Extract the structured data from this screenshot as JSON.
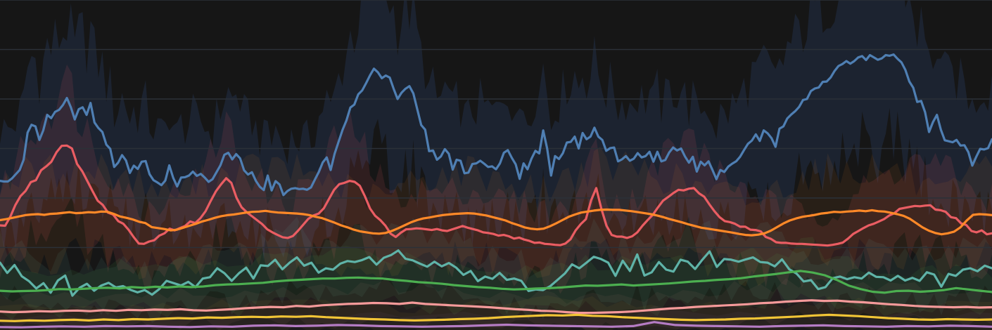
{
  "colors": {
    "background": "#161616",
    "grid": "#2b3138"
  },
  "chart_data": {
    "type": "line",
    "title": "",
    "xlabel": "",
    "ylabel": "",
    "ylim": [
      0,
      100
    ],
    "grid": true,
    "gridlines": [
      25,
      40,
      55,
      70,
      85,
      100
    ],
    "legend": "none",
    "series": [
      {
        "color": "#4f7fb3",
        "band_color": "#1c2330",
        "band_opacity": 1,
        "values": [
          45.2,
          45.0,
          45.0,
          45.9,
          47.2,
          48.5,
          51.6,
          59.8,
          62.2,
          61.7,
          57.6,
          60.5,
          65.2,
          64.2,
          66.1,
          66.7,
          68.2,
          70.3,
          67.5,
          63.8,
          66.9,
          67.5,
          65.2,
          68.8,
          62.9,
          61.2,
          60.0,
          56.2,
          54.9,
          49.4,
          50.7,
          53.0,
          51.4,
          47.6,
          49.8,
          48.8,
          51.0,
          51.2,
          47.2,
          45.4,
          44.7,
          43.9,
          45.3,
          49.9,
          46.1,
          43.5,
          46.2,
          46.3,
          46.8,
          48.0,
          46.7,
          47.3,
          46.2,
          44.9,
          45.7,
          47.8,
          49.9,
          53.1,
          53.7,
          51.7,
          53.3,
          52.0,
          48.4,
          47.1,
          47.8,
          45.2,
          43.4,
          42.4,
          46.8,
          42.3,
          45.1,
          44.1,
          40.9,
          42.1,
          42.8,
          43.0,
          42.7,
          42.8,
          42.5,
          43.2,
          45.6,
          47.9,
          50.8,
          52.3,
          48.5,
          53.4,
          57.0,
          60.6,
          63.5,
          67.4,
          68.3,
          71.4,
          72.6,
          74.8,
          77.2,
          79.2,
          78.1,
          76.3,
          77.1,
          76.5,
          73.1,
          70.0,
          71.9,
          73.1,
          73.9,
          71.7,
          66.9,
          62.1,
          60.7,
          54.2,
          54.4,
          51.6,
          52.6,
          54.8,
          53.4,
          48.6,
          51.6,
          51.3,
          47.5,
          47.7,
          50.3,
          50.5,
          51.3,
          50.4,
          49.4,
          49.6,
          48.7,
          50.5,
          53.7,
          54.5,
          52.2,
          50.2,
          45.8,
          50.5,
          48.7,
          51.9,
          54.3,
          53.5,
          60.5,
          55.0,
          46.8,
          52.7,
          51.8,
          53.6,
          56.8,
          57.0,
          58.6,
          55.0,
          59.7,
          57.8,
          58.6,
          61.3,
          58.6,
          57.6,
          54.3,
          55.1,
          55.3,
          51.1,
          51.7,
          52.7,
          51.3,
          51.9,
          53.6,
          52.3,
          52.7,
          54.0,
          51.0,
          54.0,
          51.1,
          51.5,
          53.8,
          55.3,
          54.4,
          55.0,
          52.6,
          50.7,
          52.5,
          48.0,
          51.0,
          49.9,
          51.1,
          48.5,
          45.7,
          48.5,
          47.9,
          49.5,
          50.4,
          51.1,
          52.5,
          54.5,
          56.4,
          57.4,
          59.3,
          57.3,
          60.5,
          59.6,
          58.1,
          55.5,
          61.0,
          61.7,
          64.1,
          65.3,
          66.3,
          67.6,
          69.7,
          70.0,
          72.4,
          73.2,
          73.5,
          75.2,
          75.3,
          76.5,
          78.5,
          80.0,
          80.6,
          81.5,
          80.7,
          81.5,
          82.6,
          83.0,
          81.8,
          83.3,
          82.6,
          81.9,
          82.3,
          83.3,
          83.1,
          83.5,
          82.2,
          81.1,
          78.8,
          75.3,
          73.4,
          69.1,
          69.4,
          66.0,
          60.0,
          63.0,
          65.2,
          60.7,
          57.5,
          57.2,
          56.9,
          57.6,
          55.9,
          56.0,
          53.9,
          49.8,
          52.5,
          54.9,
          54.7,
          55.1,
          57.8
        ]
      },
      {
        "color": "#ea5d63",
        "band_color": "#ea5d63",
        "band_opacity": 0.12,
        "values": [
          31.7,
          31.6,
          34.3,
          37.9,
          40.6,
          42.2,
          44.8,
          45.4,
          48.4,
          49.6,
          51.0,
          53.9,
          55.8,
          55.9,
          55.0,
          50.3,
          48.1,
          45.1,
          42.1,
          39.2,
          37.9,
          35.6,
          35.0,
          33.0,
          32.2,
          30.4,
          28.2,
          26.2,
          26.1,
          26.8,
          27.2,
          28.6,
          29.3,
          30.7,
          30.2,
          30.9,
          31.5,
          32.9,
          32.4,
          33.9,
          36.0,
          39.1,
          42.0,
          44.1,
          46.0,
          44.6,
          40.1,
          37.2,
          35.7,
          34.5,
          33.3,
          32.1,
          30.5,
          29.6,
          28.8,
          28.1,
          27.9,
          28.5,
          30.1,
          31.9,
          33.7,
          34.7,
          35.3,
          36.9,
          39.7,
          42.5,
          44.2,
          44.6,
          45.2,
          44.9,
          43.7,
          40.5,
          36.8,
          34.6,
          33.3,
          31.6,
          29.2,
          28.2,
          29.5,
          30.5,
          30.6,
          30.8,
          30.7,
          30.5,
          30.3,
          30.6,
          30.2,
          30.0,
          30.5,
          31.0,
          31.5,
          31.0,
          30.6,
          30.2,
          29.6,
          29.4,
          29.1,
          28.6,
          28.8,
          28.4,
          27.7,
          28.0,
          27.4,
          27.0,
          26.4,
          26.5,
          26.1,
          26.0,
          25.8,
          25.7,
          26.2,
          27.5,
          30.2,
          32.1,
          33.6,
          39.3,
          43.0,
          36.7,
          31.6,
          28.8,
          28.3,
          28.3,
          27.9,
          28.4,
          29.6,
          31.6,
          33.3,
          34.9,
          37.1,
          39.2,
          40.3,
          41.5,
          42.5,
          42.3,
          42.8,
          43.0,
          41.4,
          40.4,
          38.1,
          36.0,
          34.2,
          33.0,
          32.7,
          32.2,
          31.3,
          31.3,
          30.4,
          30.3,
          29.9,
          28.2,
          27.6,
          26.6,
          26.4,
          26.4,
          26.2,
          26.1,
          26.1,
          26.0,
          25.9,
          25.8,
          25.7,
          25.6,
          25.8,
          26.1,
          26.5,
          27.7,
          29.1,
          30.0,
          30.9,
          31.7,
          32.2,
          32.9,
          33.6,
          34.7,
          35.4,
          36.7,
          37.0,
          37.3,
          37.6,
          37.5,
          37.7,
          37.8,
          36.5,
          36.3,
          35.8,
          34.2,
          33.9,
          32.3,
          31.8,
          30.0,
          29.6,
          30.2,
          29.0,
          29.3
        ]
      },
      {
        "color": "#ff8928",
        "band_color": "#ff8928",
        "band_opacity": 0.08,
        "values": [
          33.3,
          33.6,
          34.0,
          34.4,
          34.8,
          35.0,
          35.1,
          34.9,
          35.2,
          35.3,
          35.5,
          35.7,
          35.4,
          35.5,
          35.7,
          35.6,
          35.9,
          35.8,
          35.2,
          34.4,
          34.0,
          33.5,
          32.8,
          32.4,
          31.2,
          30.9,
          30.6,
          30.2,
          30.4,
          31.0,
          31.6,
          32.2,
          32.9,
          33.4,
          34.0,
          34.5,
          34.8,
          35.0,
          35.3,
          35.6,
          35.8,
          35.9,
          36.1,
          35.8,
          35.6,
          35.5,
          35.4,
          35.3,
          35.1,
          34.8,
          34.3,
          33.9,
          33.2,
          32.5,
          31.7,
          31.1,
          30.4,
          29.9,
          29.6,
          29.3,
          29.2,
          29.4,
          30.0,
          30.8,
          31.7,
          32.6,
          33.3,
          33.8,
          34.1,
          34.5,
          34.8,
          35.0,
          35.2,
          35.3,
          35.4,
          35.3,
          35.0,
          34.7,
          34.2,
          33.7,
          33.2,
          32.4,
          31.8,
          31.1,
          30.7,
          30.5,
          30.7,
          31.4,
          32.3,
          33.3,
          34.3,
          35.0,
          35.6,
          35.9,
          36.2,
          36.4,
          36.5,
          36.4,
          36.4,
          36.2,
          36.0,
          35.7,
          35.4,
          35.1,
          34.7,
          34.2,
          33.6,
          33.1,
          32.6,
          32.0,
          31.5,
          31.0,
          30.7,
          30.4,
          30.1,
          29.8,
          29.5,
          29.1,
          28.8,
          28.7,
          28.9,
          29.3,
          30.1,
          31.2,
          32.3,
          33.2,
          33.8,
          34.3,
          34.6,
          34.9,
          35.3,
          35.5,
          35.8,
          35.7,
          35.9,
          36.0,
          36.2,
          36.0,
          36.3,
          36.0,
          35.9,
          35.5,
          35.1,
          34.6,
          33.7,
          32.4,
          31.1,
          30.1,
          29.4,
          29.0,
          29.3,
          29.8,
          31.1,
          33.2,
          34.9,
          35.1,
          35.0,
          34.8
        ]
      },
      {
        "color": "#5fb3a8",
        "band_color": "#5fb3a8",
        "band_opacity": 0.09,
        "values": [
          20.4,
          17.3,
          19.7,
          16.3,
          14.8,
          12.6,
          14.2,
          11.3,
          15.0,
          16.5,
          10.4,
          12.8,
          14.0,
          11.9,
          13.5,
          14.3,
          12.9,
          13.3,
          12.2,
          11.4,
          12.1,
          10.7,
          12.4,
          14.9,
          14.2,
          13.5,
          14.6,
          13.0,
          15.6,
          16.0,
          18.7,
          17.2,
          14.9,
          17.2,
          18.9,
          15.6,
          19.6,
          19.4,
          21.3,
          18.4,
          20.4,
          22.0,
          19.5,
          20.4,
          17.4,
          18.7,
          18.3,
          20.1,
          20.9,
          20.6,
          21.2,
          22.1,
          19.8,
          21.9,
          22.7,
          24.1,
          21.6,
          21.1,
          20.1,
          19.2,
          20.7,
          19.3,
          20.3,
          18.9,
          16.7,
          17.9,
          14.8,
          16.2,
          15.5,
          17.3,
          15.2,
          15.6,
          14.9,
          11.8,
          12.3,
          12.1,
          13.3,
          15.2,
          17.1,
          19.9,
          18.7,
          20.4,
          22.2,
          21.5,
          20.4,
          16.4,
          21.0,
          17.9,
          22.9,
          16.5,
          17.5,
          20.6,
          18.3,
          17.7,
          21.3,
          20.7,
          18.5,
          21.3,
          23.8,
          19.1,
          21.5,
          21.3,
          20.7,
          21.4,
          22.0,
          20.6,
          20.4,
          19.3,
          21.4,
          18.4,
          17.1,
          14.7,
          15.1,
          12.4,
          13.0,
          15.7,
          16.2,
          15.4,
          16.0,
          15.6,
          17.4,
          16.1,
          16.0,
          15.0,
          16.4,
          15.0,
          15.8,
          14.9,
          17.5,
          16.8,
          13.1,
          17.0,
          16.4,
          18.3,
          18.7,
          17.8,
          19.5,
          18.7
        ]
      },
      {
        "color": "#4caf50",
        "band_color": "#4caf50",
        "band_opacity": 0.09,
        "values": [
          11.9,
          11.7,
          11.8,
          11.9,
          12.1,
          12.4,
          12.3,
          12.5,
          12.7,
          12.8,
          12.6,
          13.0,
          12.8,
          13.1,
          12.9,
          13.2,
          13.0,
          13.2,
          13.6,
          13.8,
          13.9,
          14.1,
          14.3,
          14.7,
          15.0,
          15.2,
          15.4,
          15.6,
          15.6,
          15.8,
          15.9,
          15.7,
          15.6,
          15.2,
          14.9,
          14.5,
          14.3,
          14.0,
          13.6,
          13.3,
          13.0,
          12.8,
          12.5,
          12.3,
          12.4,
          12.6,
          12.7,
          12.9,
          13.2,
          13.5,
          13.4,
          13.6,
          13.8,
          13.5,
          13.7,
          13.9,
          14.1,
          14.4,
          14.7,
          14.9,
          15.2,
          15.4,
          15.7,
          16.2,
          16.6,
          17.0,
          17.5,
          17.9,
          17.4,
          16.6,
          15.2,
          13.5,
          12.4,
          11.6,
          11.3,
          11.8,
          11.9,
          11.6,
          11.8,
          12.1,
          12.7,
          12.3,
          11.9,
          11.5
        ]
      },
      {
        "color": "#f59a9a",
        "band_color": "#f59a9a",
        "band_opacity": 0.06,
        "values": [
          5.6,
          5.4,
          5.5,
          5.7,
          5.6,
          5.8,
          5.9,
          5.7,
          6.0,
          5.8,
          6.1,
          6.0,
          6.2,
          6.1,
          6.3,
          6.0,
          5.9,
          6.1,
          6.3,
          6.6,
          6.8,
          7.0,
          6.9,
          7.3,
          7.1,
          7.5,
          7.7,
          7.9,
          8.0,
          8.2,
          8.1,
          7.9,
          8.3,
          7.9,
          7.7,
          7.5,
          7.3,
          7.1,
          6.9,
          6.6,
          6.3,
          6.1,
          5.8,
          5.7,
          5.4,
          5.2,
          5.2,
          5.3,
          5.4,
          5.6,
          5.9,
          6.2,
          6.5,
          6.7,
          7.0,
          7.2,
          7.4,
          7.6,
          7.8,
          8.1,
          8.3,
          8.6,
          8.8,
          9.0,
          8.8,
          8.9,
          8.6,
          8.4,
          8.1,
          7.8,
          7.6,
          7.3,
          7.1,
          7.0,
          6.9,
          7.0,
          6.8,
          6.9
        ]
      },
      {
        "color": "#f2c536",
        "band_color": "#f2c536",
        "band_opacity": 0.05,
        "values": [
          2.8,
          2.7,
          2.9,
          2.8,
          3.0,
          3.1,
          2.9,
          3.2,
          3.0,
          3.3,
          3.2,
          3.4,
          3.6,
          3.5,
          3.8,
          3.7,
          3.9,
          4.0,
          3.9,
          4.1,
          4.0,
          4.2,
          3.9,
          3.7,
          3.5,
          3.3,
          3.2,
          3.0,
          2.9,
          3.0,
          3.1,
          3.3,
          3.4,
          3.6,
          3.9,
          4.1,
          4.3,
          4.5,
          4.4,
          4.6,
          4.3,
          4.2,
          3.9,
          3.7,
          3.5,
          3.3,
          3.1,
          3.0,
          3.1,
          3.2,
          3.4,
          3.5,
          3.7,
          3.9,
          4.1,
          4.4,
          4.6,
          4.4,
          4.2,
          3.9,
          3.6,
          3.4,
          3.2,
          3.1,
          3.3,
          3.2,
          3.1,
          3.2
        ]
      },
      {
        "color": "#b57cc4",
        "band_color": "#b57cc4",
        "band_opacity": 0.05,
        "values": [
          0.9,
          0.8,
          1.0,
          1.1,
          1.0,
          1.2,
          1.1,
          1.2,
          1.0,
          0.9,
          1.1,
          1.0,
          1.3,
          1.4,
          1.2,
          1.3,
          1.5,
          1.4,
          1.2,
          1.1,
          1.0,
          1.1,
          1.2,
          1.4,
          1.6,
          1.4,
          1.3,
          1.2,
          1.1,
          1.0,
          1.2,
          2.4,
          1.5,
          1.3,
          1.2,
          1.1,
          1.0,
          1.2,
          1.3,
          1.4,
          1.2,
          1.1,
          1.0,
          1.2,
          1.1,
          1.3,
          1.2,
          1.0
        ]
      }
    ]
  }
}
